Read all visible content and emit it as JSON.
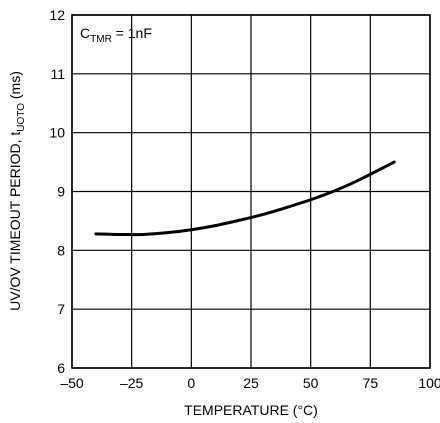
{
  "chart_data": {
    "type": "line",
    "title": "",
    "xlabel": "TEMPERATURE (°C)",
    "ylabel": {
      "main": "UV/OV TIMEOUT PERIOD, t",
      "sub": "UOTO",
      "unit": " (ms)"
    },
    "annotation": {
      "main": "C",
      "sub": "TMR",
      "rest": " = 1nF"
    },
    "xlim": [
      -50,
      100
    ],
    "ylim": [
      6,
      12
    ],
    "xticks": [
      -50,
      -25,
      0,
      25,
      50,
      75,
      100
    ],
    "yticks": [
      6,
      7,
      8,
      9,
      10,
      11,
      12
    ],
    "xtick_labels": [
      "–50",
      "–25",
      "0",
      "25",
      "50",
      "75",
      "100"
    ],
    "ytick_labels": [
      "6",
      "7",
      "8",
      "9",
      "10",
      "11",
      "12"
    ],
    "grid": true,
    "series": [
      {
        "x": [
          -40,
          -30,
          -20,
          -10,
          0,
          10,
          20,
          30,
          40,
          50,
          60,
          70,
          85
        ],
        "values": [
          8.28,
          8.27,
          8.27,
          8.3,
          8.35,
          8.42,
          8.51,
          8.61,
          8.73,
          8.86,
          9.01,
          9.19,
          9.5
        ]
      }
    ]
  }
}
